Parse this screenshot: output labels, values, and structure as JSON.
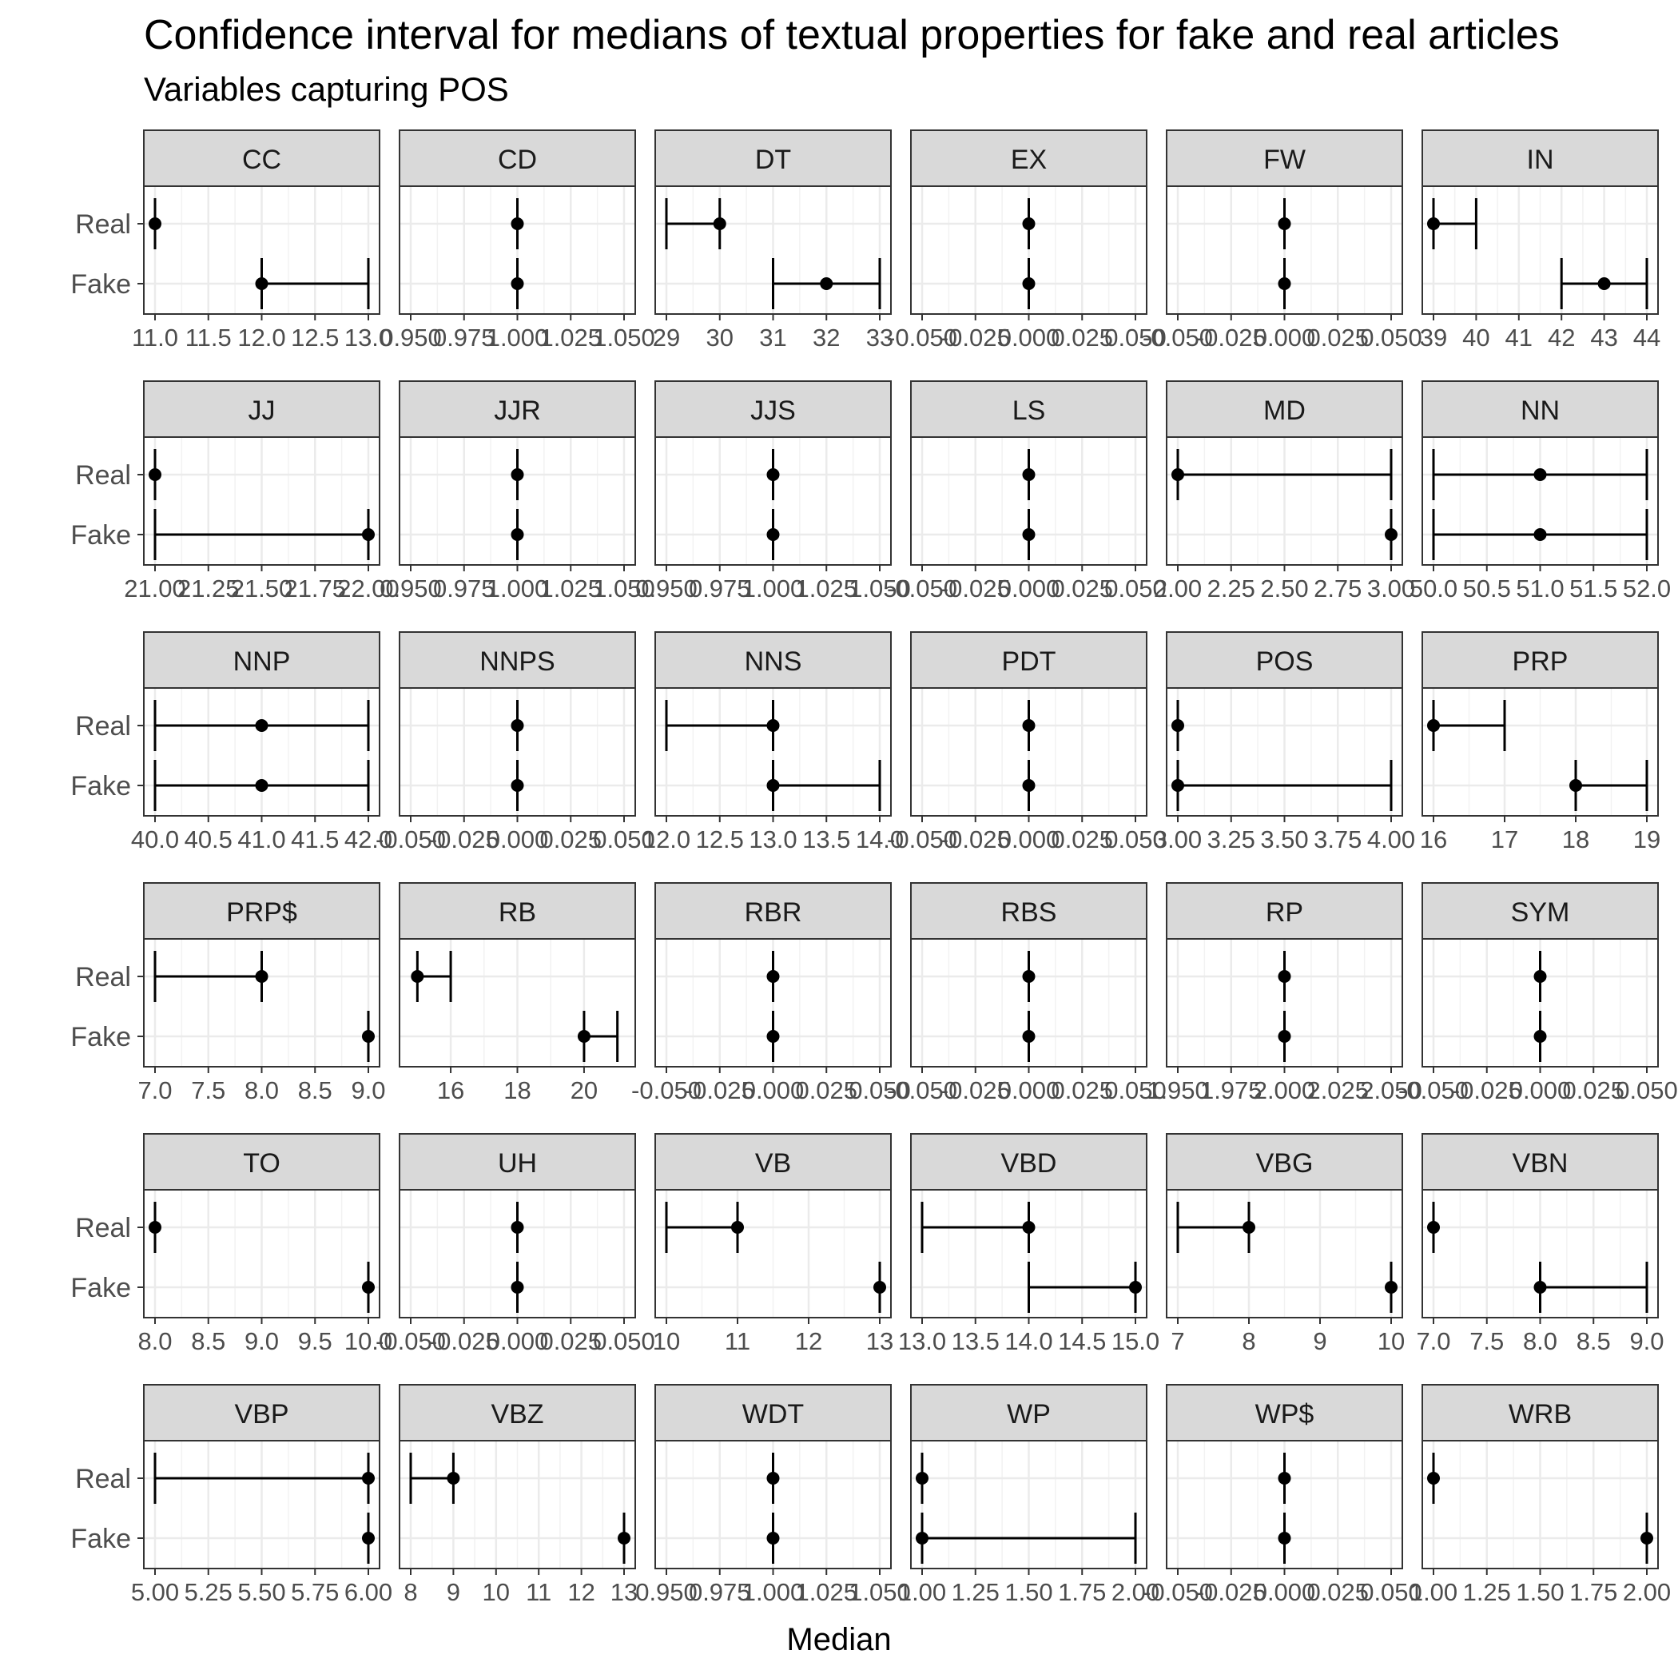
{
  "chart_data": {
    "type": "errorbar-facet",
    "title": "Confidence interval for medians of textual properties for fake and real articles",
    "subtitle": "Variables capturing POS",
    "xlabel": "Median",
    "categories": [
      "Real",
      "Fake"
    ],
    "panels": [
      {
        "name": "CC",
        "ticks": [
          "11.0",
          "11.5",
          "12.0",
          "12.5",
          "13.0"
        ],
        "xlim": [
          11,
          13
        ],
        "real": {
          "median": 11,
          "lo": 11,
          "hi": 11
        },
        "fake": {
          "median": 12,
          "lo": 12,
          "hi": 13
        }
      },
      {
        "name": "CD",
        "ticks": [
          "0.950",
          "0.975",
          "1.000",
          "1.025",
          "1.050"
        ],
        "xlim": [
          0.95,
          1.05
        ],
        "real": {
          "median": 1,
          "lo": 1,
          "hi": 1
        },
        "fake": {
          "median": 1,
          "lo": 1,
          "hi": 1
        }
      },
      {
        "name": "DT",
        "ticks": [
          "29",
          "30",
          "31",
          "32",
          "33"
        ],
        "xlim": [
          29,
          33
        ],
        "real": {
          "median": 30,
          "lo": 29,
          "hi": 30
        },
        "fake": {
          "median": 32,
          "lo": 31,
          "hi": 33
        }
      },
      {
        "name": "EX",
        "ticks": [
          "-0.050",
          "-0.025",
          "0.000",
          "0.025",
          "0.050"
        ],
        "xlim": [
          -0.05,
          0.05
        ],
        "real": {
          "median": 0,
          "lo": 0,
          "hi": 0
        },
        "fake": {
          "median": 0,
          "lo": 0,
          "hi": 0
        }
      },
      {
        "name": "FW",
        "ticks": [
          "-0.050",
          "-0.025",
          "0.000",
          "0.025",
          "0.050"
        ],
        "xlim": [
          -0.05,
          0.05
        ],
        "real": {
          "median": 0,
          "lo": 0,
          "hi": 0
        },
        "fake": {
          "median": 0,
          "lo": 0,
          "hi": 0
        }
      },
      {
        "name": "IN",
        "ticks": [
          "39",
          "40",
          "41",
          "42",
          "43",
          "44"
        ],
        "xlim": [
          39,
          44
        ],
        "real": {
          "median": 39,
          "lo": 39,
          "hi": 40
        },
        "fake": {
          "median": 43,
          "lo": 42,
          "hi": 44
        }
      },
      {
        "name": "JJ",
        "ticks": [
          "21.00",
          "21.25",
          "21.50",
          "21.75",
          "22.00"
        ],
        "xlim": [
          21,
          22
        ],
        "real": {
          "median": 21,
          "lo": 21,
          "hi": 21
        },
        "fake": {
          "median": 22,
          "lo": 21,
          "hi": 22
        }
      },
      {
        "name": "JJR",
        "ticks": [
          "0.950",
          "0.975",
          "1.000",
          "1.025",
          "1.050"
        ],
        "xlim": [
          0.95,
          1.05
        ],
        "real": {
          "median": 1,
          "lo": 1,
          "hi": 1
        },
        "fake": {
          "median": 1,
          "lo": 1,
          "hi": 1
        }
      },
      {
        "name": "JJS",
        "ticks": [
          "0.950",
          "0.975",
          "1.000",
          "1.025",
          "1.050"
        ],
        "xlim": [
          0.95,
          1.05
        ],
        "real": {
          "median": 1,
          "lo": 1,
          "hi": 1
        },
        "fake": {
          "median": 1,
          "lo": 1,
          "hi": 1
        }
      },
      {
        "name": "LS",
        "ticks": [
          "-0.050",
          "-0.025",
          "0.000",
          "0.025",
          "0.050"
        ],
        "xlim": [
          -0.05,
          0.05
        ],
        "real": {
          "median": 0,
          "lo": 0,
          "hi": 0
        },
        "fake": {
          "median": 0,
          "lo": 0,
          "hi": 0
        }
      },
      {
        "name": "MD",
        "ticks": [
          "2.00",
          "2.25",
          "2.50",
          "2.75",
          "3.00"
        ],
        "xlim": [
          2,
          3
        ],
        "real": {
          "median": 2,
          "lo": 2,
          "hi": 3
        },
        "fake": {
          "median": 3,
          "lo": 3,
          "hi": 3
        }
      },
      {
        "name": "NN",
        "ticks": [
          "50.0",
          "50.5",
          "51.0",
          "51.5",
          "52.0"
        ],
        "xlim": [
          50,
          52
        ],
        "real": {
          "median": 51,
          "lo": 50,
          "hi": 52
        },
        "fake": {
          "median": 51,
          "lo": 50,
          "hi": 52
        }
      },
      {
        "name": "NNP",
        "ticks": [
          "40.0",
          "40.5",
          "41.0",
          "41.5",
          "42.0"
        ],
        "xlim": [
          40,
          42
        ],
        "real": {
          "median": 41,
          "lo": 40,
          "hi": 42
        },
        "fake": {
          "median": 41,
          "lo": 40,
          "hi": 42
        }
      },
      {
        "name": "NNPS",
        "ticks": [
          "-0.050",
          "-0.025",
          "0.000",
          "0.025",
          "0.050"
        ],
        "xlim": [
          -0.05,
          0.05
        ],
        "real": {
          "median": 0,
          "lo": 0,
          "hi": 0
        },
        "fake": {
          "median": 0,
          "lo": 0,
          "hi": 0
        }
      },
      {
        "name": "NNS",
        "ticks": [
          "12.0",
          "12.5",
          "13.0",
          "13.5",
          "14.0"
        ],
        "xlim": [
          12,
          14
        ],
        "real": {
          "median": 13,
          "lo": 12,
          "hi": 13
        },
        "fake": {
          "median": 13,
          "lo": 13,
          "hi": 14
        }
      },
      {
        "name": "PDT",
        "ticks": [
          "-0.050",
          "-0.025",
          "0.000",
          "0.025",
          "0.050"
        ],
        "xlim": [
          -0.05,
          0.05
        ],
        "real": {
          "median": 0,
          "lo": 0,
          "hi": 0
        },
        "fake": {
          "median": 0,
          "lo": 0,
          "hi": 0
        }
      },
      {
        "name": "POS",
        "ticks": [
          "3.00",
          "3.25",
          "3.50",
          "3.75",
          "4.00"
        ],
        "xlim": [
          3,
          4
        ],
        "real": {
          "median": 3,
          "lo": 3,
          "hi": 3
        },
        "fake": {
          "median": 3,
          "lo": 3,
          "hi": 4
        }
      },
      {
        "name": "PRP",
        "ticks": [
          "16",
          "17",
          "18",
          "19"
        ],
        "xlim": [
          16,
          19
        ],
        "real": {
          "median": 16,
          "lo": 16,
          "hi": 17
        },
        "fake": {
          "median": 18,
          "lo": 18,
          "hi": 19
        }
      },
      {
        "name": "PRP$",
        "ticks": [
          "7.0",
          "7.5",
          "8.0",
          "8.5",
          "9.0"
        ],
        "xlim": [
          7,
          9
        ],
        "real": {
          "median": 8,
          "lo": 7,
          "hi": 8
        },
        "fake": {
          "median": 9,
          "lo": 9,
          "hi": 9
        }
      },
      {
        "name": "RB",
        "ticks": [
          "16",
          "18",
          "20"
        ],
        "xlim": [
          14.8,
          21.2
        ],
        "real": {
          "median": 15,
          "lo": 15,
          "hi": 16
        },
        "fake": {
          "median": 20,
          "lo": 20,
          "hi": 21
        }
      },
      {
        "name": "RBR",
        "ticks": [
          "-0.050",
          "-0.025",
          "0.000",
          "0.025",
          "0.050"
        ],
        "xlim": [
          -0.05,
          0.05
        ],
        "real": {
          "median": 0,
          "lo": 0,
          "hi": 0
        },
        "fake": {
          "median": 0,
          "lo": 0,
          "hi": 0
        }
      },
      {
        "name": "RBS",
        "ticks": [
          "-0.050",
          "-0.025",
          "0.000",
          "0.025",
          "0.050"
        ],
        "xlim": [
          -0.05,
          0.05
        ],
        "real": {
          "median": 0,
          "lo": 0,
          "hi": 0
        },
        "fake": {
          "median": 0,
          "lo": 0,
          "hi": 0
        }
      },
      {
        "name": "RP",
        "ticks": [
          "1.950",
          "1.975",
          "2.000",
          "2.025",
          "2.050"
        ],
        "xlim": [
          1.95,
          2.05
        ],
        "real": {
          "median": 2,
          "lo": 2,
          "hi": 2
        },
        "fake": {
          "median": 2,
          "lo": 2,
          "hi": 2
        }
      },
      {
        "name": "SYM",
        "ticks": [
          "-0.050",
          "-0.025",
          "0.000",
          "0.025",
          "0.050"
        ],
        "xlim": [
          -0.05,
          0.05
        ],
        "real": {
          "median": 0,
          "lo": 0,
          "hi": 0
        },
        "fake": {
          "median": 0,
          "lo": 0,
          "hi": 0
        }
      },
      {
        "name": "TO",
        "ticks": [
          "8.0",
          "8.5",
          "9.0",
          "9.5",
          "10.0"
        ],
        "xlim": [
          8,
          10
        ],
        "real": {
          "median": 8,
          "lo": 8,
          "hi": 8
        },
        "fake": {
          "median": 10,
          "lo": 10,
          "hi": 10
        }
      },
      {
        "name": "UH",
        "ticks": [
          "-0.050",
          "-0.025",
          "0.000",
          "0.025",
          "0.050"
        ],
        "xlim": [
          -0.05,
          0.05
        ],
        "real": {
          "median": 0,
          "lo": 0,
          "hi": 0
        },
        "fake": {
          "median": 0,
          "lo": 0,
          "hi": 0
        }
      },
      {
        "name": "VB",
        "ticks": [
          "10",
          "11",
          "12",
          "13"
        ],
        "xlim": [
          10,
          13
        ],
        "real": {
          "median": 11,
          "lo": 10,
          "hi": 11
        },
        "fake": {
          "median": 13,
          "lo": 13,
          "hi": 13
        }
      },
      {
        "name": "VBD",
        "ticks": [
          "13.0",
          "13.5",
          "14.0",
          "14.5",
          "15.0"
        ],
        "xlim": [
          13,
          15
        ],
        "real": {
          "median": 14,
          "lo": 13,
          "hi": 14
        },
        "fake": {
          "median": 15,
          "lo": 14,
          "hi": 15
        }
      },
      {
        "name": "VBG",
        "ticks": [
          "7",
          "8",
          "9",
          "10"
        ],
        "xlim": [
          7,
          10
        ],
        "real": {
          "median": 8,
          "lo": 7,
          "hi": 8
        },
        "fake": {
          "median": 10,
          "lo": 10,
          "hi": 10
        }
      },
      {
        "name": "VBN",
        "ticks": [
          "7.0",
          "7.5",
          "8.0",
          "8.5",
          "9.0"
        ],
        "xlim": [
          7,
          9
        ],
        "real": {
          "median": 7,
          "lo": 7,
          "hi": 7
        },
        "fake": {
          "median": 8,
          "lo": 8,
          "hi": 9
        }
      },
      {
        "name": "VBP",
        "ticks": [
          "5.00",
          "5.25",
          "5.50",
          "5.75",
          "6.00"
        ],
        "xlim": [
          5,
          6
        ],
        "real": {
          "median": 6,
          "lo": 5,
          "hi": 6
        },
        "fake": {
          "median": 6,
          "lo": 6,
          "hi": 6
        }
      },
      {
        "name": "VBZ",
        "ticks": [
          "8",
          "9",
          "10",
          "11",
          "12",
          "13"
        ],
        "xlim": [
          8,
          13
        ],
        "real": {
          "median": 9,
          "lo": 8,
          "hi": 9
        },
        "fake": {
          "median": 13,
          "lo": 13,
          "hi": 13
        }
      },
      {
        "name": "WDT",
        "ticks": [
          "0.950",
          "0.975",
          "1.000",
          "1.025",
          "1.050"
        ],
        "xlim": [
          0.95,
          1.05
        ],
        "real": {
          "median": 1,
          "lo": 1,
          "hi": 1
        },
        "fake": {
          "median": 1,
          "lo": 1,
          "hi": 1
        }
      },
      {
        "name": "WP",
        "ticks": [
          "1.00",
          "1.25",
          "1.50",
          "1.75",
          "2.00"
        ],
        "xlim": [
          1,
          2
        ],
        "real": {
          "median": 1,
          "lo": 1,
          "hi": 1
        },
        "fake": {
          "median": 1,
          "lo": 1,
          "hi": 2
        }
      },
      {
        "name": "WP$",
        "ticks": [
          "-0.050",
          "-0.025",
          "0.000",
          "0.025",
          "0.050"
        ],
        "xlim": [
          -0.05,
          0.05
        ],
        "real": {
          "median": 0,
          "lo": 0,
          "hi": 0
        },
        "fake": {
          "median": 0,
          "lo": 0,
          "hi": 0
        }
      },
      {
        "name": "WRB",
        "ticks": [
          "1.00",
          "1.25",
          "1.50",
          "1.75",
          "2.00"
        ],
        "xlim": [
          1,
          2
        ],
        "real": {
          "median": 1,
          "lo": 1,
          "hi": 1
        },
        "fake": {
          "median": 2,
          "lo": 2,
          "hi": 2
        }
      }
    ],
    "grid": true,
    "colors": {
      "strip_fill": "#d9d9d9",
      "panel_border": "#333333",
      "grid": "#ebebeb",
      "ink": "#000000",
      "tick_text": "#4d4d4d"
    }
  }
}
